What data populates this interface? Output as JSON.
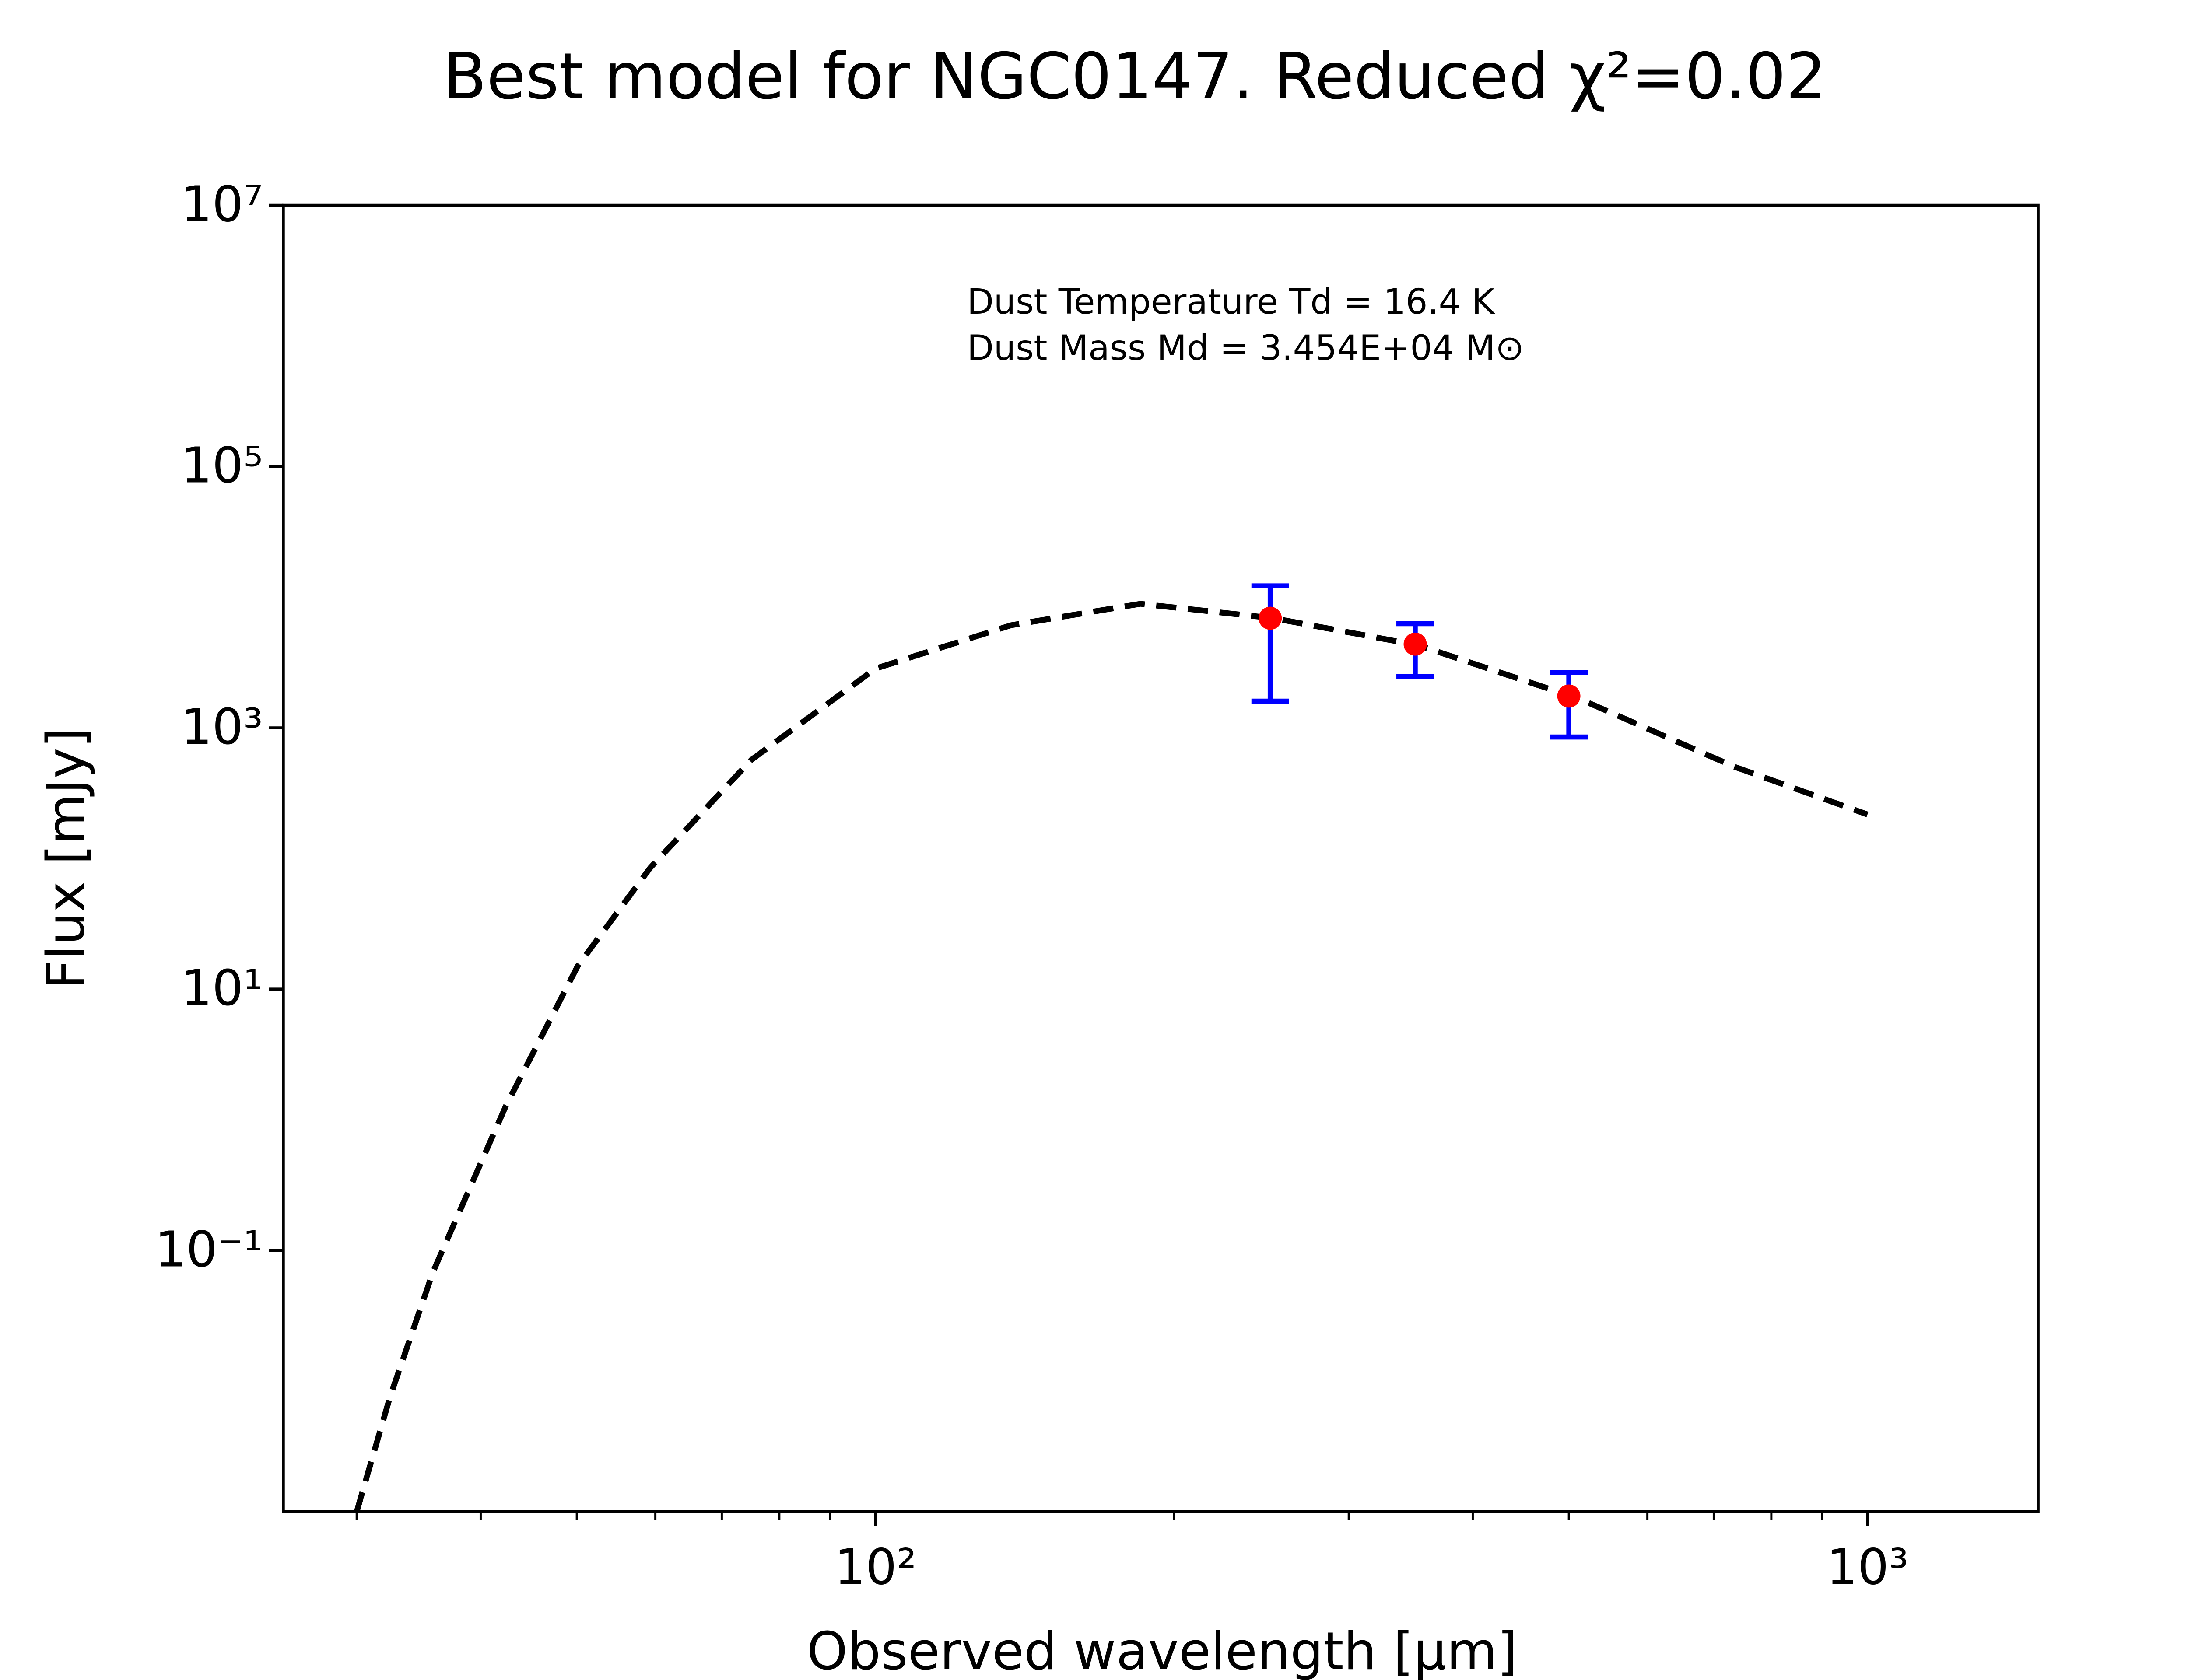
{
  "chart_data": {
    "type": "line",
    "title": "Best model for NGC0147. Reduced χ²=0.02",
    "xlabel": "Observed wavelength [μm]",
    "ylabel": "Flux [mJy]",
    "annotations": [
      "Dust Temperature Td = 16.4 K",
      "Dust Mass Md = 3.454E+04 M⊙"
    ],
    "xlog": true,
    "ylog": true,
    "xlim": [
      25.3,
      1486
    ],
    "ylim": [
      0.001,
      10000000
    ],
    "xticks": [
      {
        "value": 100,
        "label": "10²"
      },
      {
        "value": 1000,
        "label": "10³"
      }
    ],
    "xminor": [
      30,
      40,
      50,
      60,
      70,
      80,
      90,
      200,
      300,
      400,
      500,
      600,
      700,
      800,
      900
    ],
    "yticks": [
      {
        "value": 0.1,
        "label": "10⁻¹"
      },
      {
        "value": 10,
        "label": "10¹"
      },
      {
        "value": 1000,
        "label": "10³"
      },
      {
        "value": 100000,
        "label": "10⁵"
      },
      {
        "value": 10000000,
        "label": "10⁷"
      }
    ],
    "model": {
      "color": "#000000",
      "dashed": true,
      "x": [
        30.0,
        32.4,
        35.8,
        42.4,
        50.1,
        59.3,
        75.0,
        100,
        137,
        185,
        252,
        353,
        513,
        734,
        1000
      ],
      "values": [
        0.001,
        0.0075,
        0.068,
        1.27,
        15.0,
        85,
        570,
        2840,
        6100,
        8900,
        6900,
        4270,
        1660,
        504,
        217
      ]
    },
    "points": {
      "color": "#ff0000",
      "error_color": "#0000ff",
      "x": [
        250,
        350,
        500
      ],
      "values": [
        6900,
        4370,
        1750
      ],
      "errors": [
        5300,
        1900,
        900
      ]
    }
  }
}
